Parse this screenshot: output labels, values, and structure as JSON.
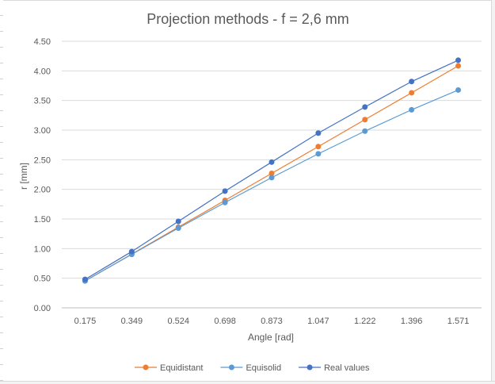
{
  "chart_data": {
    "type": "line",
    "title": "Projection methods - f = 2,6 mm",
    "xlabel": "Angle [rad]",
    "ylabel": "r [mm]",
    "categories": [
      "0.175",
      "0.349",
      "0.524",
      "0.698",
      "0.873",
      "1.047",
      "1.222",
      "1.396",
      "1.571"
    ],
    "ylim": [
      0,
      4.5
    ],
    "yticks": [
      "0.00",
      "0.50",
      "1.00",
      "1.50",
      "2.00",
      "2.50",
      "3.00",
      "3.50",
      "4.00",
      "4.50"
    ],
    "grid": true,
    "legend_position": "bottom",
    "series": [
      {
        "name": "Equidistant",
        "color": "#ED7D31",
        "values": [
          0.455,
          0.907,
          1.362,
          1.815,
          2.27,
          2.722,
          3.177,
          3.63,
          4.085
        ]
      },
      {
        "name": "Equisolid",
        "color": "#5B9BD5",
        "values": [
          0.454,
          0.902,
          1.346,
          1.778,
          2.198,
          2.6,
          2.983,
          3.343,
          3.677
        ]
      },
      {
        "name": "Real values",
        "color": "#4472C4",
        "values": [
          0.48,
          0.95,
          1.46,
          1.97,
          2.46,
          2.95,
          3.39,
          3.82,
          4.18
        ]
      }
    ]
  }
}
